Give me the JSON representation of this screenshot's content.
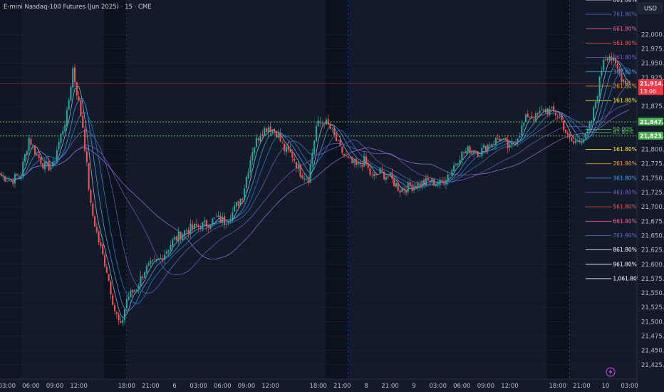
{
  "header": {
    "title": "E-mini Nasdaq-100 Futures (Jun 2025) · 15 · CME",
    "currency_button": "USD"
  },
  "colors": {
    "background": "#131a2a",
    "session_shade": "#0c111c",
    "bull": "#26a69a",
    "bear": "#ef5350",
    "price_tag": "#f23645",
    "level_tag": "#4caf50",
    "ma_colors": [
      "#90caf9",
      "#42a5f5",
      "#1e88e5",
      "#5c6bc0",
      "#7e57c2",
      "#9575cd"
    ]
  },
  "price_tags": [
    {
      "price": 21914.5,
      "label": "21,914.50",
      "sub": "13:06",
      "kind": "last"
    },
    {
      "price": 21847.75,
      "label": "21,847.75",
      "sub": "",
      "kind": "level"
    },
    {
      "price": 21823.25,
      "label": "21,823.25",
      "sub": "",
      "kind": "level"
    }
  ],
  "fib_levels": [
    {
      "price": 22060,
      "label": "861.80%",
      "color": "#ffffff"
    },
    {
      "price": 22035,
      "label": "761.80%",
      "color": "#5c6bc0"
    },
    {
      "price": 22010,
      "label": "661.80%",
      "color": "#f06292"
    },
    {
      "price": 21985,
      "label": "561.80%",
      "color": "#ef5350"
    },
    {
      "price": 21960,
      "label": "461.80%",
      "color": "#7e57c2"
    },
    {
      "price": 21935,
      "label": "361.80%",
      "color": "#42a5f5"
    },
    {
      "price": 21910,
      "label": "261.80%",
      "color": "#ffa726"
    },
    {
      "price": 21885,
      "label": "161.80%",
      "color": "#ffeb3b"
    },
    {
      "price": 21835,
      "label": "50.00%",
      "color": "#66bb6a"
    },
    {
      "price": 21830,
      "label": "61.80%",
      "color": "#4caf50"
    },
    {
      "price": 21800,
      "label": "161.80%",
      "color": "#ffeb3b"
    },
    {
      "price": 21775,
      "label": "261.80%",
      "color": "#ffa726"
    },
    {
      "price": 21750,
      "label": "361.80%",
      "color": "#42a5f5"
    },
    {
      "price": 21725,
      "label": "461.80%",
      "color": "#7e57c2"
    },
    {
      "price": 21700,
      "label": "561.80%",
      "color": "#ef5350"
    },
    {
      "price": 21675,
      "label": "661.80%",
      "color": "#f06292"
    },
    {
      "price": 21650,
      "label": "761.80%",
      "color": "#5c6bc0"
    },
    {
      "price": 21625,
      "label": "861.80%",
      "color": "#ffffff"
    },
    {
      "price": 21600,
      "label": "961.80%",
      "color": "#ffffff"
    },
    {
      "price": 21575,
      "label": "1,061.80%",
      "color": "#ffffff"
    }
  ],
  "chart_data": {
    "type": "candlestick",
    "title": "E-mini Nasdaq-100 Futures (Jun 2025) · 15 · CME",
    "ylim": [
      21400,
      22060
    ],
    "y_ticks": [
      "22,000.00",
      "21,975.00",
      "21,950.00",
      "21,925.00",
      "21,875.00",
      "21,850.00",
      "21,825.00",
      "21,800.00",
      "21,775.00",
      "21,750.00",
      "21,725.00",
      "21,700.00",
      "21,675.00",
      "21,650.00",
      "21,625.00",
      "21,600.00",
      "21,575.00",
      "21,550.00",
      "21,525.00",
      "21,500.00",
      "21,475.00",
      "21,450.00",
      "21,425.00"
    ],
    "y_tick_values": [
      22000,
      21975,
      21950,
      21925,
      21875,
      21850,
      21825,
      21800,
      21775,
      21750,
      21725,
      21700,
      21675,
      21650,
      21625,
      21600,
      21575,
      21550,
      21525,
      21500,
      21475,
      21450,
      21425
    ],
    "x_ticks": [
      "03:00",
      "06:00",
      "09:00",
      "12:00",
      "18:00",
      "21:00",
      "6",
      "03:00",
      "06:00",
      "09:00",
      "12:00",
      "18:00",
      "21:00",
      "8",
      "21:00",
      "9",
      "03:00",
      "06:00",
      "09:00",
      "12:00",
      "18:00",
      "21:00",
      "10",
      "03:00"
    ],
    "x_tick_index": [
      3,
      15,
      27,
      39,
      63,
      75,
      87,
      99,
      111,
      123,
      135,
      159,
      171,
      183,
      195,
      207,
      219,
      231,
      243,
      255,
      279,
      291,
      303,
      315
    ],
    "session_breaks": [
      63,
      174,
      285
    ],
    "bar_count": 316,
    "last_price": 21914.5,
    "close_anchors": [
      [
        0,
        21755
      ],
      [
        5,
        21745
      ],
      [
        10,
        21758
      ],
      [
        14,
        21820
      ],
      [
        18,
        21790
      ],
      [
        22,
        21770
      ],
      [
        26,
        21770
      ],
      [
        28,
        21800
      ],
      [
        33,
        21860
      ],
      [
        36,
        21940
      ],
      [
        41,
        21840
      ],
      [
        45,
        21700
      ],
      [
        49,
        21640
      ],
      [
        53,
        21590
      ],
      [
        57,
        21520
      ],
      [
        60,
        21490
      ],
      [
        63,
        21540
      ],
      [
        68,
        21560
      ],
      [
        72,
        21590
      ],
      [
        76,
        21600
      ],
      [
        80,
        21610
      ],
      [
        86,
        21640
      ],
      [
        93,
        21660
      ],
      [
        98,
        21665
      ],
      [
        103,
        21670
      ],
      [
        108,
        21680
      ],
      [
        112,
        21675
      ],
      [
        116,
        21690
      ],
      [
        121,
        21720
      ],
      [
        126,
        21800
      ],
      [
        130,
        21830
      ],
      [
        134,
        21840
      ],
      [
        138,
        21830
      ],
      [
        142,
        21800
      ],
      [
        146,
        21790
      ],
      [
        150,
        21760
      ],
      [
        154,
        21750
      ],
      [
        158,
        21840
      ],
      [
        162,
        21850
      ],
      [
        166,
        21830
      ],
      [
        170,
        21800
      ],
      [
        174,
        21780
      ],
      [
        178,
        21770
      ],
      [
        182,
        21780
      ],
      [
        186,
        21750
      ],
      [
        190,
        21760
      ],
      [
        195,
        21750
      ],
      [
        200,
        21730
      ],
      [
        205,
        21735
      ],
      [
        210,
        21740
      ],
      [
        215,
        21745
      ],
      [
        220,
        21740
      ],
      [
        225,
        21760
      ],
      [
        230,
        21790
      ],
      [
        235,
        21800
      ],
      [
        240,
        21795
      ],
      [
        245,
        21810
      ],
      [
        250,
        21820
      ],
      [
        255,
        21800
      ],
      [
        260,
        21830
      ],
      [
        264,
        21860
      ],
      [
        268,
        21855
      ],
      [
        272,
        21870
      ],
      [
        276,
        21865
      ],
      [
        280,
        21860
      ],
      [
        284,
        21820
      ],
      [
        287,
        21810
      ],
      [
        290,
        21820
      ],
      [
        293,
        21820
      ],
      [
        296,
        21850
      ],
      [
        299,
        21900
      ],
      [
        302,
        21960
      ],
      [
        305,
        21965
      ],
      [
        308,
        21945
      ],
      [
        311,
        21925
      ],
      [
        315,
        21914.5
      ]
    ]
  }
}
